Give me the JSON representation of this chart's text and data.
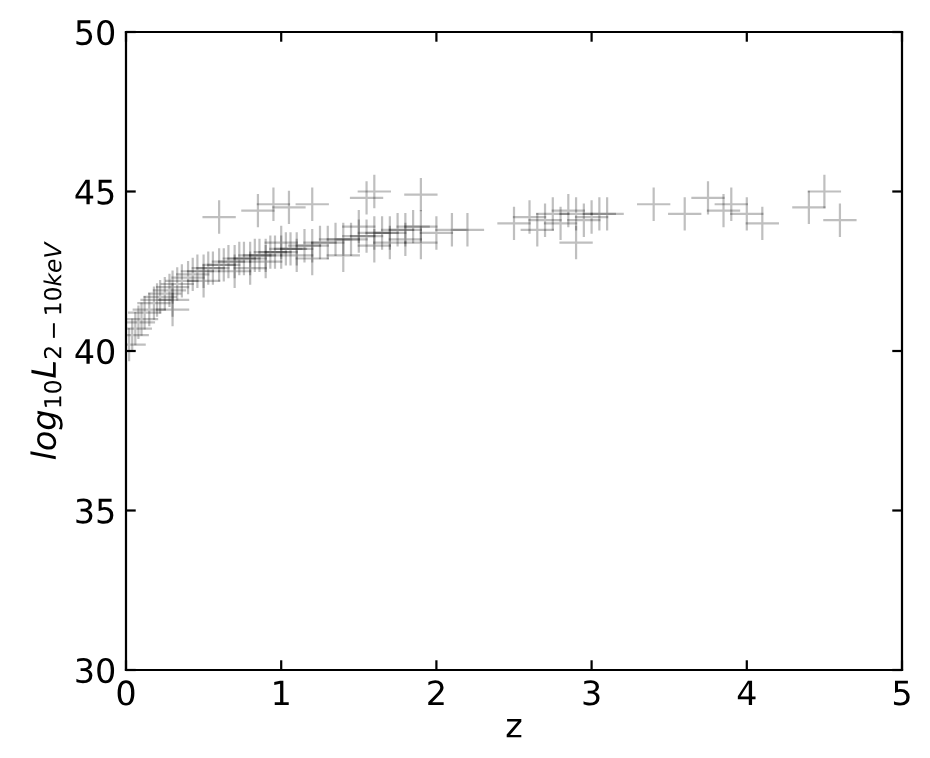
{
  "chart_data": {
    "type": "scatter",
    "xlabel": "z",
    "ylabel": "log$_{10}$L$_{2−10keV}$",
    "xlim": [
      0,
      5
    ],
    "ylim": [
      30,
      50
    ],
    "xticks": [
      0,
      1,
      2,
      3,
      4,
      5
    ],
    "yticks": [
      30,
      35,
      40,
      45,
      50
    ],
    "grid": false,
    "marker": "cross",
    "series": [
      {
        "color": "#000000",
        "x": [
          0.02,
          0.04,
          0.06,
          0.08,
          0.1,
          0.12,
          0.15,
          0.18,
          0.2,
          0.22,
          0.25,
          0.28,
          0.3,
          0.33,
          0.36,
          0.4,
          0.43,
          0.46,
          0.5,
          0.53,
          0.56,
          0.6,
          0.63,
          0.66,
          0.7,
          0.73,
          0.76,
          0.8,
          0.83,
          0.86,
          0.9,
          0.93,
          0.96,
          1.0,
          1.03,
          1.06,
          1.1,
          1.15,
          1.2,
          1.25,
          1.3,
          1.35,
          1.4,
          1.45,
          1.5,
          1.55,
          1.6,
          1.65,
          1.7,
          1.75,
          1.8,
          1.85,
          1.9,
          0.3,
          0.5,
          0.7,
          0.9,
          1.0,
          1.2,
          1.4,
          1.6,
          1.7,
          1.8,
          0.8,
          1.1,
          1.5,
          1.9,
          2.0,
          2.1,
          2.2,
          2.5,
          2.6,
          2.7,
          2.75,
          2.8,
          2.85,
          2.9,
          2.95,
          3.0,
          3.05,
          3.1,
          2.65,
          2.9,
          0.3,
          0.6,
          0.85,
          0.95,
          1.05,
          1.2,
          1.55,
          1.6,
          1.9,
          3.4,
          3.6,
          3.75,
          3.85,
          3.9,
          4.0,
          4.1,
          4.4,
          4.5,
          4.6
        ],
        "values": [
          40.2,
          40.5,
          40.7,
          40.9,
          41.0,
          41.2,
          41.3,
          41.5,
          41.6,
          41.7,
          41.8,
          41.9,
          42.0,
          42.1,
          42.2,
          42.3,
          42.4,
          42.5,
          42.5,
          42.6,
          42.6,
          42.7,
          42.7,
          42.8,
          42.8,
          42.9,
          42.9,
          42.9,
          43.0,
          43.0,
          43.0,
          43.1,
          43.1,
          43.1,
          43.2,
          43.2,
          43.2,
          43.3,
          43.3,
          43.4,
          43.4,
          43.5,
          43.5,
          43.5,
          43.6,
          43.6,
          43.7,
          43.7,
          43.7,
          43.8,
          43.8,
          43.9,
          43.9,
          41.6,
          42.2,
          42.5,
          42.8,
          43.4,
          42.9,
          43.0,
          43.3,
          43.4,
          43.5,
          42.6,
          43.0,
          43.9,
          43.4,
          43.7,
          43.8,
          43.8,
          44.0,
          44.2,
          44.1,
          44.3,
          44.0,
          44.4,
          44.3,
          44.1,
          44.2,
          44.3,
          44.3,
          43.8,
          43.4,
          41.3,
          44.2,
          44.4,
          44.6,
          44.5,
          44.6,
          44.8,
          45.0,
          44.9,
          44.6,
          44.3,
          44.8,
          44.4,
          44.6,
          44.3,
          44.0,
          44.5,
          45.0,
          44.1
        ]
      }
    ]
  }
}
